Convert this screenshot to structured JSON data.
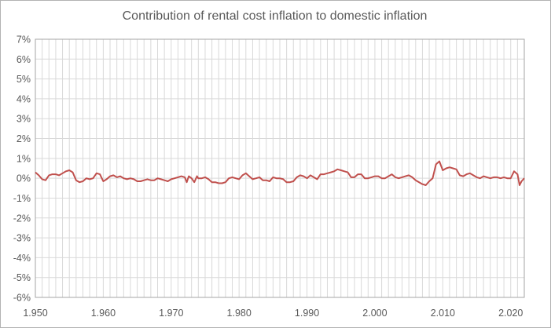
{
  "chart_data": {
    "type": "line",
    "title": "Contribution of rental cost inflation to domestic inflation",
    "xlabel": "",
    "ylabel": "",
    "xlim": [
      1950,
      2022
    ],
    "ylim": [
      -6,
      7
    ],
    "y_ticks": [
      "-6%",
      "-5%",
      "-4%",
      "-3%",
      "-2%",
      "-1%",
      "0%",
      "1%",
      "2%",
      "3%",
      "4%",
      "5%",
      "6%",
      "7%"
    ],
    "x_ticks": [
      "1.950",
      "1.960",
      "1.970",
      "1.980",
      "1.990",
      "2.000",
      "2.010",
      "2.020"
    ],
    "grid": true,
    "legend": "none",
    "series": [
      {
        "color": "#c0504d",
        "x": [
          1950,
          1950.5,
          1951,
          1951.5,
          1952,
          1952.5,
          1953,
          1953.5,
          1954,
          1954.5,
          1955,
          1955.5,
          1956,
          1956.5,
          1957,
          1957.5,
          1958,
          1958.5,
          1959,
          1959.5,
          1960,
          1960.5,
          1961,
          1961.5,
          1962,
          1962.5,
          1963,
          1963.5,
          1964,
          1964.5,
          1965,
          1965.5,
          1966,
          1966.5,
          1967,
          1967.5,
          1968,
          1968.5,
          1969,
          1969.5,
          1970,
          1970.5,
          1971,
          1971.5,
          1972,
          1972.3,
          1972.6,
          1973,
          1973.4,
          1973.8,
          1974,
          1974.5,
          1975,
          1975.5,
          1976,
          1976.5,
          1977,
          1977.5,
          1978,
          1978.5,
          1979,
          1979.5,
          1980,
          1980.5,
          1981,
          1981.5,
          1982,
          1982.5,
          1983,
          1983.5,
          1984,
          1984.5,
          1985,
          1985.5,
          1986,
          1986.5,
          1987,
          1987.5,
          1988,
          1988.5,
          1989,
          1989.5,
          1990,
          1990.5,
          1991,
          1991.5,
          1992,
          1992.5,
          1993,
          1993.5,
          1994,
          1994.5,
          1995,
          1995.5,
          1996,
          1996.5,
          1997,
          1997.5,
          1998,
          1998.5,
          1999,
          1999.5,
          2000,
          2000.5,
          2001,
          2001.5,
          2002,
          2002.5,
          2003,
          2003.5,
          2004,
          2004.5,
          2005,
          2005.5,
          2006,
          2006.5,
          2007,
          2007.5,
          2008,
          2008.5,
          2009,
          2009.5,
          2010,
          2010.5,
          2011,
          2011.5,
          2012,
          2012.5,
          2013,
          2013.5,
          2014,
          2014.5,
          2015,
          2015.5,
          2016,
          2016.5,
          2017,
          2017.5,
          2018,
          2018.5,
          2019,
          2019.5,
          2020,
          2020.5,
          2021,
          2021.3,
          2021.6,
          2022
        ],
        "y": [
          0.3,
          0.15,
          -0.05,
          -0.1,
          0.15,
          0.2,
          0.2,
          0.15,
          0.25,
          0.35,
          0.4,
          0.3,
          -0.1,
          -0.2,
          -0.15,
          0.0,
          -0.05,
          0.0,
          0.25,
          0.2,
          -0.15,
          -0.05,
          0.1,
          0.15,
          0.05,
          0.1,
          0.0,
          -0.05,
          0.0,
          -0.05,
          -0.15,
          -0.15,
          -0.1,
          -0.05,
          -0.1,
          -0.1,
          0.0,
          -0.05,
          -0.1,
          -0.15,
          -0.05,
          0.0,
          0.05,
          0.1,
          0.05,
          -0.2,
          0.1,
          0.0,
          -0.2,
          0.1,
          0.0,
          0.0,
          0.05,
          -0.05,
          -0.2,
          -0.2,
          -0.25,
          -0.25,
          -0.2,
          0.0,
          0.05,
          0.0,
          -0.05,
          0.15,
          0.25,
          0.1,
          -0.05,
          0.0,
          0.05,
          -0.1,
          -0.1,
          -0.15,
          0.05,
          0.0,
          0.0,
          -0.05,
          -0.2,
          -0.2,
          -0.15,
          0.05,
          0.15,
          0.1,
          0.0,
          0.15,
          0.05,
          -0.05,
          0.2,
          0.2,
          0.25,
          0.3,
          0.35,
          0.45,
          0.4,
          0.35,
          0.3,
          0.05,
          0.05,
          0.2,
          0.2,
          0.0,
          0.0,
          0.05,
          0.1,
          0.1,
          0.0,
          0.0,
          0.1,
          0.2,
          0.05,
          0.0,
          0.05,
          0.1,
          0.15,
          0.05,
          -0.1,
          -0.2,
          -0.3,
          -0.35,
          -0.15,
          0.0,
          0.7,
          0.85,
          0.4,
          0.5,
          0.55,
          0.5,
          0.45,
          0.15,
          0.1,
          0.2,
          0.25,
          0.15,
          0.05,
          0.0,
          0.1,
          0.05,
          0.0,
          0.05,
          0.05,
          0.0,
          0.05,
          0.0,
          0.0,
          0.35,
          0.2,
          -0.35,
          -0.15,
          0.0
        ]
      }
    ]
  }
}
